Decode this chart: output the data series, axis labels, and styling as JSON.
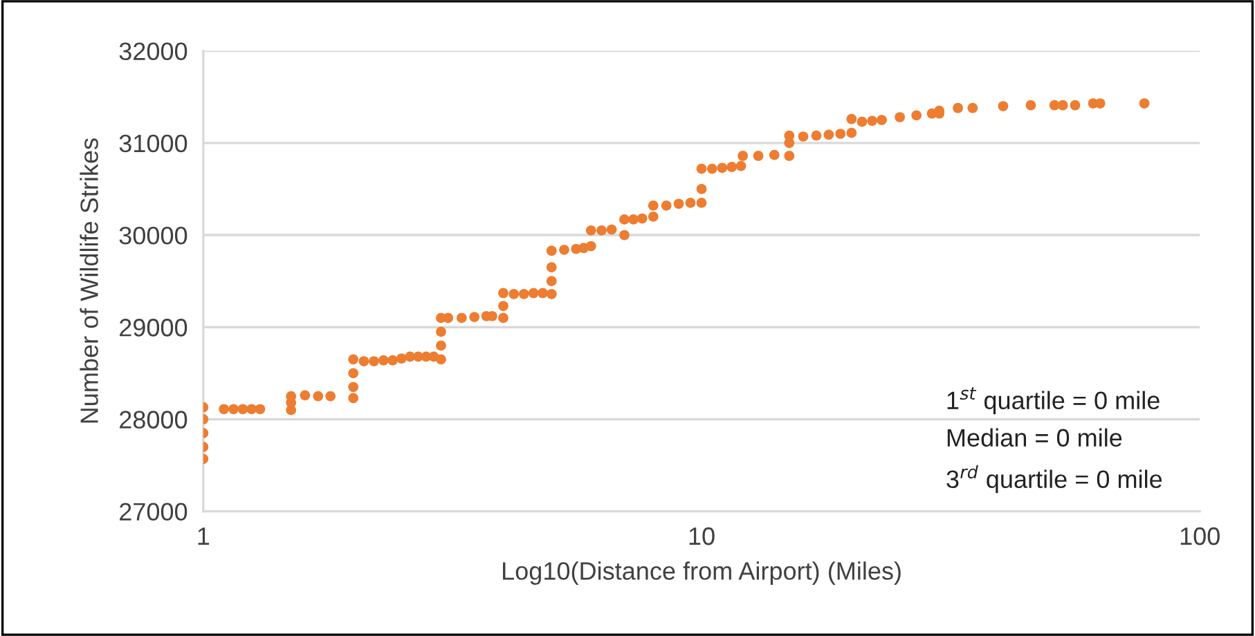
{
  "chart_data": {
    "type": "scatter",
    "xlabel": "Log10(Distance from Airport) (Miles)",
    "ylabel": "Number of Wildlife Strikes",
    "log": "x",
    "xlim": [
      1,
      100
    ],
    "xticks": [
      1,
      10,
      100
    ],
    "ylim": [
      27000,
      32000
    ],
    "yticks": [
      27000,
      28000,
      29000,
      30000,
      31000,
      32000
    ],
    "grid": "y",
    "marker": "circle",
    "series": [
      {
        "color": "#ed7d31",
        "x": [
          1,
          1,
          1,
          1,
          1,
          1.1,
          1.15,
          1.2,
          1.25,
          1.3,
          1.5,
          1.5,
          1.5,
          1.6,
          1.7,
          1.8,
          2,
          2,
          2,
          2,
          2.1,
          2.2,
          2.3,
          2.4,
          2.5,
          2.6,
          2.7,
          2.8,
          2.9,
          3,
          3,
          3,
          3,
          3.1,
          3.3,
          3.5,
          3.7,
          3.8,
          4,
          4,
          4,
          4.2,
          4.4,
          4.6,
          4.8,
          5,
          5,
          5,
          5,
          5.3,
          5.6,
          5.8,
          6,
          6,
          6.3,
          6.6,
          7,
          7,
          7.3,
          7.6,
          8,
          8,
          8.5,
          9,
          9.5,
          10,
          10,
          10,
          10.5,
          11,
          11.5,
          12,
          12.1,
          13,
          14,
          15,
          15,
          15,
          16,
          17,
          18,
          19,
          20,
          20,
          21,
          22,
          23,
          25,
          27,
          29,
          30,
          30,
          32.7,
          35,
          40.3,
          45.8,
          51.1,
          53.1,
          56.2,
          61.1,
          63.1,
          77.4
        ],
        "values": [
          27570,
          27700,
          27850,
          28000,
          28130,
          28110,
          28110,
          28110,
          28110,
          28110,
          28100,
          28180,
          28250,
          28260,
          28250,
          28250,
          28230,
          28350,
          28500,
          28650,
          28630,
          28630,
          28640,
          28640,
          28660,
          28680,
          28680,
          28680,
          28680,
          28650,
          28800,
          28950,
          29100,
          29100,
          29100,
          29110,
          29120,
          29120,
          29100,
          29230,
          29370,
          29360,
          29360,
          29370,
          29370,
          29360,
          29500,
          29650,
          29830,
          29840,
          29850,
          29860,
          29880,
          30050,
          30050,
          30060,
          30000,
          30170,
          30170,
          30180,
          30200,
          30320,
          30320,
          30340,
          30350,
          30350,
          30500,
          30720,
          30720,
          30730,
          30740,
          30750,
          30860,
          30860,
          30870,
          30860,
          31000,
          31080,
          31070,
          31080,
          31090,
          31100,
          31110,
          31260,
          31230,
          31240,
          31250,
          31280,
          31300,
          31320,
          31320,
          31350,
          31380,
          31380,
          31400,
          31410,
          31410,
          31410,
          31410,
          31430,
          31430,
          31430
        ]
      }
    ],
    "annotations": [
      "1$^{st}$ quartile = 0 mile",
      "Median = 0 mile",
      "3$^{rd}$ quartile = 0 mile"
    ]
  }
}
